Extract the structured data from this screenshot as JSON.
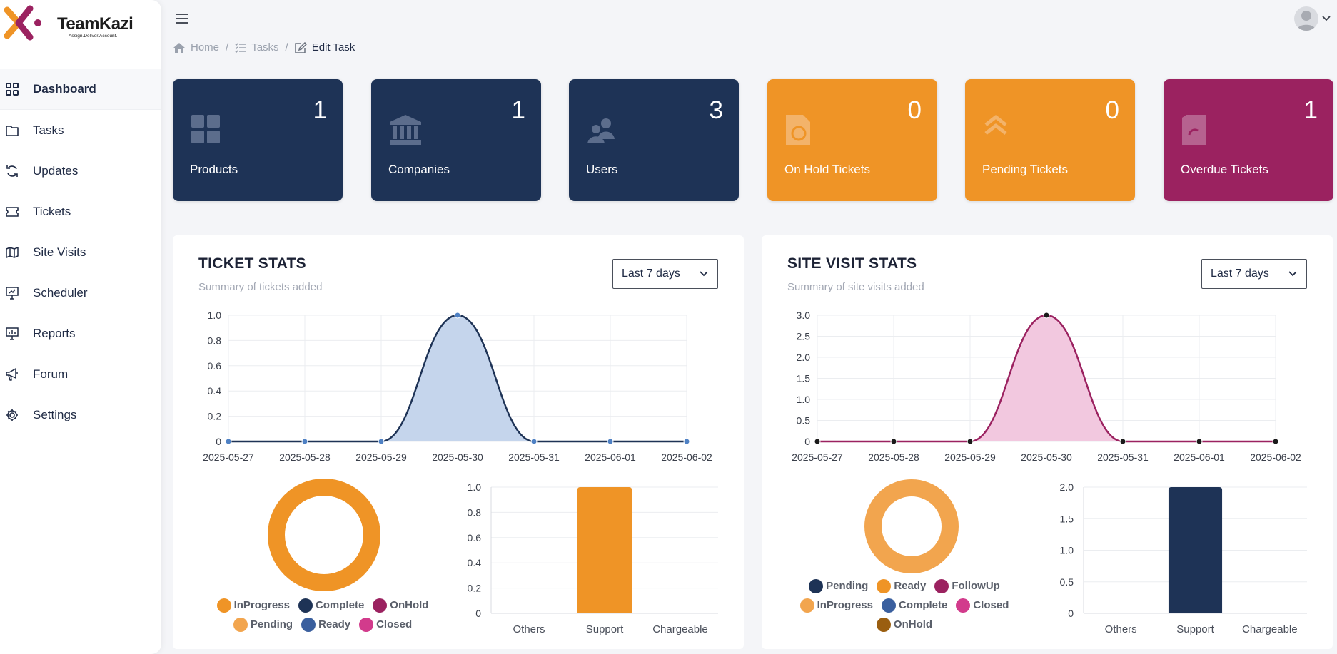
{
  "brand": {
    "name": "TeamKazi",
    "tagline": "Assign.Deliver.Account."
  },
  "colors": {
    "navy": "#1e3356",
    "orange": "#ef9426",
    "magenta": "#9b2260"
  },
  "nav": [
    {
      "label": "Dashboard",
      "icon": "grid-icon",
      "active": true
    },
    {
      "label": "Tasks",
      "icon": "folder-icon"
    },
    {
      "label": "Updates",
      "icon": "refresh-icon"
    },
    {
      "label": "Tickets",
      "icon": "ticket-icon"
    },
    {
      "label": "Site Visits",
      "icon": "map-icon"
    },
    {
      "label": "Scheduler",
      "icon": "presentation-icon"
    },
    {
      "label": "Reports",
      "icon": "chart-board-icon"
    },
    {
      "label": "Forum",
      "icon": "megaphone-icon"
    },
    {
      "label": "Settings",
      "icon": "gear-icon"
    }
  ],
  "breadcrumb": {
    "home": "Home",
    "tasks": "Tasks",
    "current": "Edit Task",
    "sep": "/"
  },
  "cards": [
    {
      "label": "Products",
      "count": "1",
      "color": "#1e3356",
      "icon": "products-icon"
    },
    {
      "label": "Companies",
      "count": "1",
      "color": "#1e3356",
      "icon": "bank-icon"
    },
    {
      "label": "Users",
      "count": "3",
      "color": "#1e3356",
      "icon": "users-icon"
    },
    {
      "label": "On Hold Tickets",
      "count": "0",
      "color": "#ef9426",
      "icon": "hold-icon"
    },
    {
      "label": "Pending Tickets",
      "count": "0",
      "color": "#ef9426",
      "icon": "pending-icon"
    },
    {
      "label": "Overdue Tickets",
      "count": "1",
      "color": "#9b2260",
      "icon": "overdue-icon"
    }
  ],
  "ticket_stats": {
    "title": "TICKET STATS",
    "subtitle": "Summary of tickets added",
    "range": "Last 7 days"
  },
  "site_stats": {
    "title": "SITE VISIT STATS",
    "subtitle": "Summary of site visits added",
    "range": "Last 7 days"
  },
  "chart_data": [
    {
      "id": "ticket-line",
      "type": "area",
      "categories": [
        "2025-05-27",
        "2025-05-28",
        "2025-05-29",
        "2025-05-30",
        "2025-05-31",
        "2025-06-01",
        "2025-06-02"
      ],
      "values": [
        0,
        0,
        0,
        1,
        0,
        0,
        0
      ],
      "ylim": [
        0,
        1
      ],
      "yticks": [
        "0",
        "0.2",
        "0.4",
        "0.6",
        "0.8",
        "1.0"
      ],
      "ytick_values": [
        0,
        0.2,
        0.4,
        0.6,
        0.8,
        1.0
      ],
      "line_color": "#1e3356",
      "fill_color": "#c5d5ec",
      "point_color": "#4f81c4"
    },
    {
      "id": "ticket-donut",
      "type": "pie",
      "labels": [
        "InProgress",
        "Complete",
        "OnHold",
        "Pending",
        "Ready",
        "Closed"
      ],
      "values": [
        1,
        0,
        0,
        0,
        0,
        0
      ],
      "colors": [
        "#ef9426",
        "#1e3356",
        "#9b2260",
        "#f2a54e",
        "#3a5f9e",
        "#d23b8c"
      ],
      "legend_rows": [
        [
          0,
          1,
          2
        ],
        [
          3,
          4,
          5
        ]
      ]
    },
    {
      "id": "ticket-bar",
      "type": "bar",
      "categories": [
        "Others",
        "Support",
        "Chargeable"
      ],
      "values": [
        0,
        1,
        0
      ],
      "ylim": [
        0,
        1
      ],
      "yticks": [
        "0",
        "0.2",
        "0.4",
        "0.6",
        "0.8",
        "1.0"
      ],
      "ytick_values": [
        0,
        0.2,
        0.4,
        0.6,
        0.8,
        1.0
      ],
      "color": "#ef9426"
    },
    {
      "id": "site-line",
      "type": "area",
      "categories": [
        "2025-05-27",
        "2025-05-28",
        "2025-05-29",
        "2025-05-30",
        "2025-05-31",
        "2025-06-01",
        "2025-06-02"
      ],
      "values": [
        0,
        0,
        0,
        3,
        0,
        0,
        0
      ],
      "ylim": [
        0,
        3
      ],
      "yticks": [
        "0",
        "0.5",
        "1.0",
        "1.5",
        "2.0",
        "2.5",
        "3.0"
      ],
      "ytick_values": [
        0,
        0.5,
        1.0,
        1.5,
        2.0,
        2.5,
        3.0
      ],
      "line_color": "#9b2260",
      "fill_color": "#f2c8df",
      "point_color": "#1a1a1a"
    },
    {
      "id": "site-donut",
      "type": "pie",
      "labels": [
        "Pending",
        "Ready",
        "FollowUp",
        "InProgress",
        "Complete",
        "Closed",
        "OnHold"
      ],
      "values": [
        0,
        0,
        0,
        1,
        0,
        0,
        0
      ],
      "colors": [
        "#1e3356",
        "#ef9426",
        "#9b2260",
        "#f2a54e",
        "#3a5f9e",
        "#d23b8c",
        "#9a5e10"
      ],
      "legend_rows": [
        [
          0,
          1,
          2
        ],
        [
          3,
          4,
          5
        ],
        [
          6
        ]
      ]
    },
    {
      "id": "site-bar",
      "type": "bar",
      "categories": [
        "Others",
        "Support",
        "Chargeable"
      ],
      "values": [
        0,
        2,
        0
      ],
      "ylim": [
        0,
        2
      ],
      "yticks": [
        "0",
        "0.5",
        "1.0",
        "1.5",
        "2.0"
      ],
      "ytick_values": [
        0,
        0.5,
        1.0,
        1.5,
        2.0
      ],
      "color": "#1e3356"
    }
  ]
}
